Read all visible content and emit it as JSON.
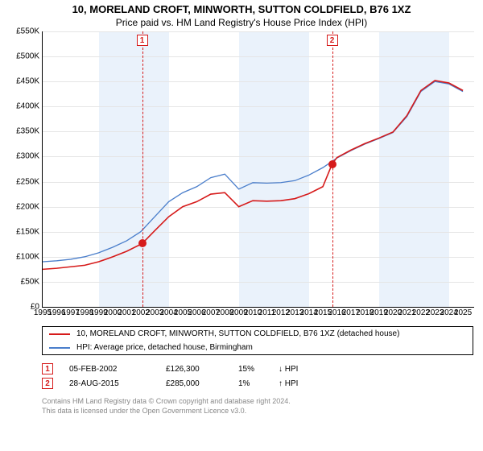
{
  "title": "10, MORELAND CROFT, MINWORTH, SUTTON COLDFIELD, B76 1XZ",
  "subtitle": "Price paid vs. HM Land Registry's House Price Index (HPI)",
  "chart": {
    "type": "line",
    "ylim": [
      0,
      550000
    ],
    "ytick_step": 50000,
    "ytick_labels": [
      "£0",
      "£50K",
      "£100K",
      "£150K",
      "£200K",
      "£250K",
      "£300K",
      "£350K",
      "£400K",
      "£450K",
      "£500K",
      "£550K"
    ],
    "xlim": [
      1995,
      2025.8
    ],
    "xtick_step": 1,
    "xticks": [
      1995,
      1996,
      1997,
      1998,
      1999,
      2000,
      2001,
      2002,
      2003,
      2004,
      2005,
      2006,
      2007,
      2008,
      2009,
      2010,
      2011,
      2012,
      2013,
      2014,
      2015,
      2016,
      2017,
      2018,
      2019,
      2020,
      2021,
      2022,
      2023,
      2024,
      2025
    ],
    "background_color": "#ffffff",
    "grid_color": "#e5e5e5",
    "band_color": "#eaf2fb",
    "bands": [
      {
        "start": 1999,
        "end": 2004
      },
      {
        "start": 2009,
        "end": 2014
      },
      {
        "start": 2019,
        "end": 2024
      }
    ],
    "series": [
      {
        "name": "HPI: Average price, detached house, Birmingham",
        "color": "#4a7ecb",
        "width": 1.3,
        "points": [
          [
            1995,
            90000
          ],
          [
            1996,
            92000
          ],
          [
            1997,
            95000
          ],
          [
            1998,
            100000
          ],
          [
            1999,
            108000
          ],
          [
            2000,
            119000
          ],
          [
            2001,
            132000
          ],
          [
            2002,
            150000
          ],
          [
            2003,
            180000
          ],
          [
            2004,
            210000
          ],
          [
            2005,
            228000
          ],
          [
            2006,
            240000
          ],
          [
            2007,
            258000
          ],
          [
            2008,
            265000
          ],
          [
            2009,
            235000
          ],
          [
            2010,
            248000
          ],
          [
            2011,
            247000
          ],
          [
            2012,
            248000
          ],
          [
            2013,
            252000
          ],
          [
            2014,
            263000
          ],
          [
            2015,
            278000
          ],
          [
            2016,
            297000
          ],
          [
            2017,
            312000
          ],
          [
            2018,
            325000
          ],
          [
            2019,
            336000
          ],
          [
            2020,
            348000
          ],
          [
            2021,
            380000
          ],
          [
            2022,
            430000
          ],
          [
            2023,
            450000
          ],
          [
            2024,
            445000
          ],
          [
            2025,
            430000
          ]
        ]
      },
      {
        "name": "10, MORELAND CROFT, MINWORTH, SUTTON COLDFIELD, B76 1XZ (detached house)",
        "color": "#d61a1a",
        "width": 1.6,
        "points": [
          [
            1995,
            75000
          ],
          [
            1996,
            77000
          ],
          [
            1997,
            80000
          ],
          [
            1998,
            83000
          ],
          [
            1999,
            90000
          ],
          [
            2000,
            100000
          ],
          [
            2001,
            111000
          ],
          [
            2002.1,
            126300
          ],
          [
            2003,
            152000
          ],
          [
            2004,
            180000
          ],
          [
            2005,
            200000
          ],
          [
            2006,
            210000
          ],
          [
            2007,
            225000
          ],
          [
            2008,
            228000
          ],
          [
            2009,
            200000
          ],
          [
            2010,
            212000
          ],
          [
            2011,
            211000
          ],
          [
            2012,
            212000
          ],
          [
            2013,
            216000
          ],
          [
            2014,
            226000
          ],
          [
            2015,
            240000
          ],
          [
            2015.66,
            285000
          ],
          [
            2016,
            298000
          ],
          [
            2017,
            313000
          ],
          [
            2018,
            326000
          ],
          [
            2019,
            337000
          ],
          [
            2020,
            349000
          ],
          [
            2021,
            382000
          ],
          [
            2022,
            432000
          ],
          [
            2023,
            452000
          ],
          [
            2024,
            447000
          ],
          [
            2025,
            432000
          ]
        ]
      }
    ],
    "sale_markers": [
      {
        "num": "1",
        "x": 2002.1,
        "y": 126300
      },
      {
        "num": "2",
        "x": 2015.66,
        "y": 285000
      }
    ]
  },
  "legend": {
    "items": [
      {
        "color": "#d61a1a",
        "label": "10, MORELAND CROFT, MINWORTH, SUTTON COLDFIELD, B76 1XZ (detached house)"
      },
      {
        "color": "#4a7ecb",
        "label": "HPI: Average price, detached house, Birmingham"
      }
    ]
  },
  "sales": [
    {
      "num": "1",
      "date": "05-FEB-2002",
      "price": "£126,300",
      "pct": "15%",
      "dir": "↓",
      "ref": "HPI"
    },
    {
      "num": "2",
      "date": "28-AUG-2015",
      "price": "£285,000",
      "pct": "1%",
      "dir": "↑",
      "ref": "HPI"
    }
  ],
  "footer": {
    "line1": "Contains HM Land Registry data © Crown copyright and database right 2024.",
    "line2": "This data is licensed under the Open Government Licence v3.0."
  }
}
